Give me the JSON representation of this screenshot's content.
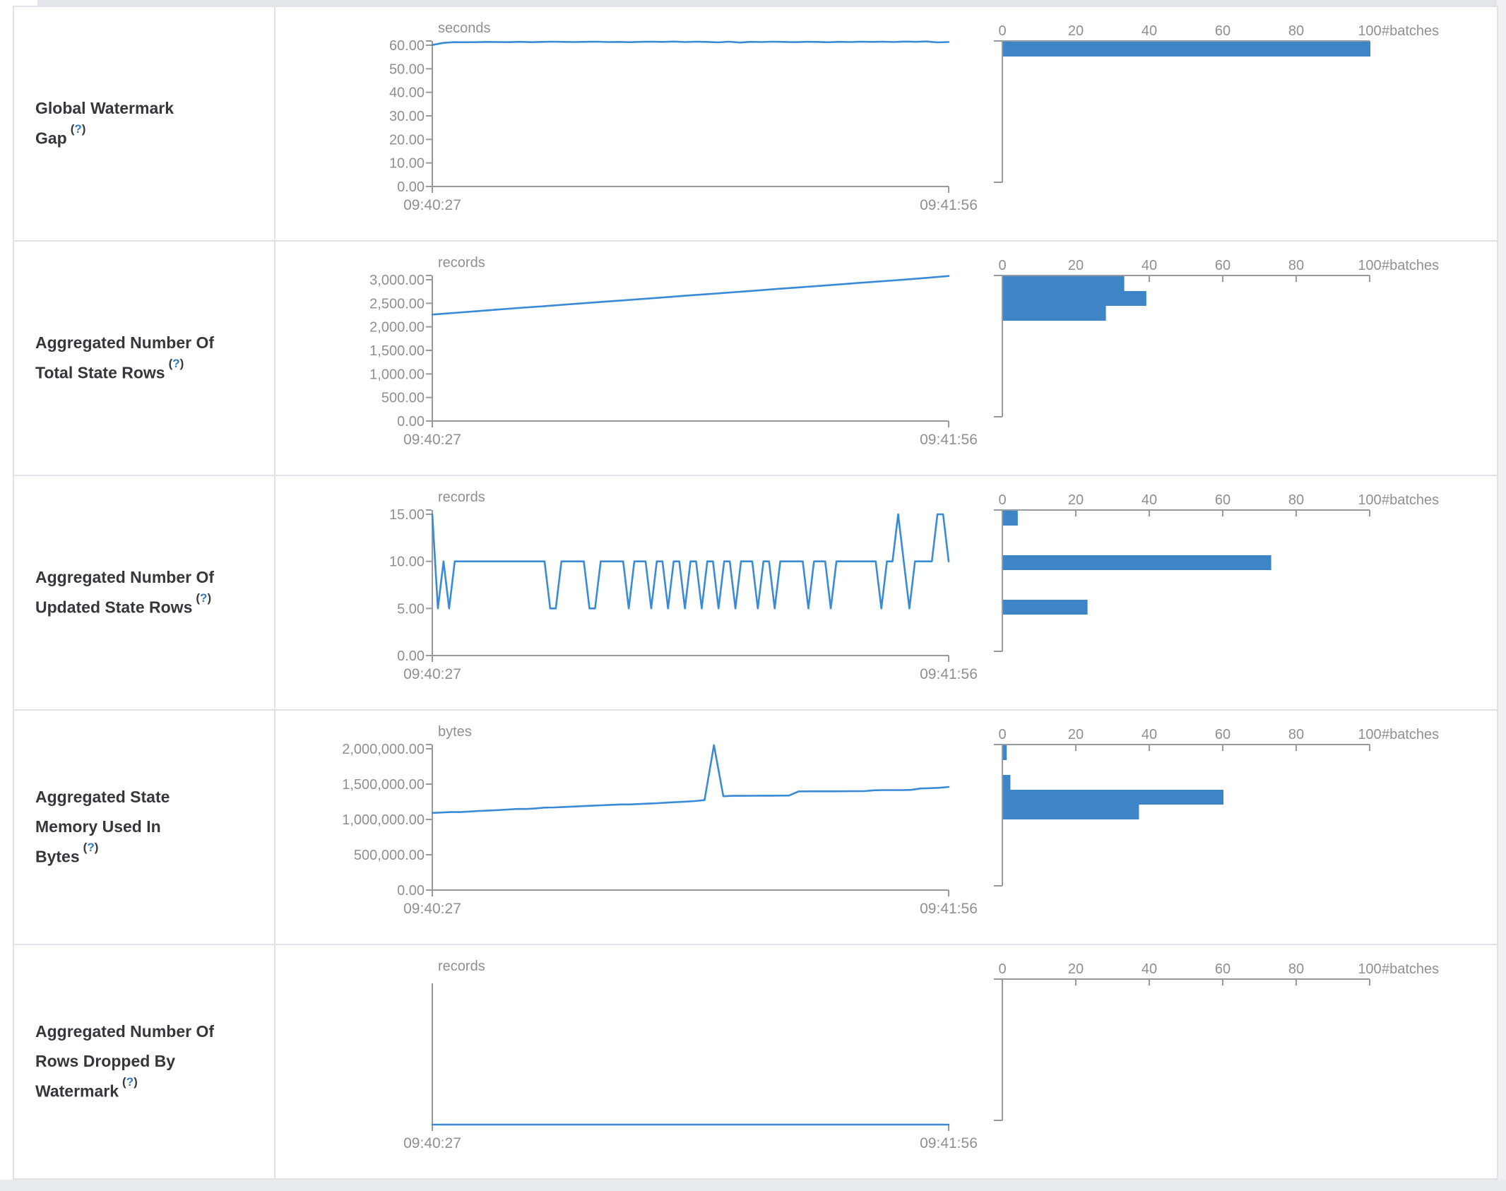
{
  "page": {
    "background": "#ffffff",
    "bottom_strip_color": "#e8ebee",
    "top_divider_color": "#e2e5e9",
    "table_border_color": "#dfe2e7"
  },
  "colors": {
    "bar": "#3d85c6",
    "line": "#3a8ad5",
    "axis": "#97999c",
    "tick_text": "#8d9093",
    "label_text": "#34373c",
    "help_blue": "#2e7cc0"
  },
  "help": {
    "prefix": "(",
    "mark": "?",
    "suffix": ")"
  },
  "time_axis": {
    "start": "09:40:27",
    "end": "09:41:56"
  },
  "histogram_axis": {
    "ticks": [
      "0",
      "20",
      "40",
      "60",
      "80",
      "100"
    ],
    "unit_label": "#batches",
    "max": 100
  },
  "rows": [
    {
      "label": "Global Watermark Gap",
      "timeline": {
        "type": "line",
        "unit": "seconds",
        "y_max": 60,
        "y_ticks": [
          "60.00",
          "50.00",
          "40.00",
          "30.00",
          "20.00",
          "10.00",
          "0.00"
        ],
        "values": [
          60.1,
          61.0,
          61.3,
          61.25,
          61.3,
          61.4,
          61.35,
          61.3,
          61.45,
          61.3,
          61.4,
          61.5,
          61.4,
          61.35,
          61.45,
          61.5,
          61.35,
          61.4,
          61.3,
          61.45,
          61.5,
          61.4,
          61.55,
          61.35,
          61.5,
          61.4,
          61.2,
          61.5,
          61.15,
          61.45,
          61.35,
          61.5,
          61.4,
          61.3,
          61.45,
          61.4,
          61.25,
          61.45,
          61.35,
          61.5,
          61.4,
          61.5,
          61.35,
          61.55,
          61.45,
          61.6,
          61.2,
          61.35
        ]
      },
      "histogram": {
        "type": "bar",
        "bars": [
          {
            "bucket": 0,
            "count": 100
          }
        ]
      }
    },
    {
      "label": "Aggregated Number Of Total State Rows",
      "timeline": {
        "type": "line",
        "unit": "records",
        "y_max": 3000,
        "y_ticks": [
          "3,000.00",
          "2,500.00",
          "2,000.00",
          "1,500.00",
          "1,000.00",
          "500.00",
          "0.00"
        ],
        "values": [
          2260,
          2295,
          2330,
          2365,
          2400,
          2432,
          2466,
          2500,
          2533,
          2566,
          2600,
          2634,
          2668,
          2701,
          2735,
          2769,
          2803,
          2836,
          2870,
          2904,
          2938,
          2971,
          3005,
          3040,
          3080
        ]
      },
      "histogram": {
        "type": "bar",
        "bars": [
          {
            "bucket": 0,
            "count": 33
          },
          {
            "bucket": 1,
            "count": 39
          },
          {
            "bucket": 2,
            "count": 28
          }
        ]
      }
    },
    {
      "label": "Aggregated Number Of Updated State Rows",
      "timeline": {
        "type": "line",
        "unit": "records",
        "y_max": 15,
        "y_ticks": [
          "15.00",
          "10.00",
          "5.00",
          "0.00"
        ],
        "values": [
          15,
          5,
          10,
          5,
          10,
          10,
          10,
          10,
          10,
          10,
          10,
          10,
          10,
          10,
          10,
          10,
          10,
          10,
          10,
          10,
          10,
          5,
          5,
          10,
          10,
          10,
          10,
          10,
          5,
          5,
          10,
          10,
          10,
          10,
          10,
          5,
          10,
          10,
          10,
          5,
          10,
          10,
          5,
          10,
          10,
          5,
          10,
          10,
          5,
          10,
          10,
          5,
          10,
          10,
          5,
          10,
          10,
          10,
          5,
          10,
          10,
          5,
          10,
          10,
          10,
          10,
          10,
          5,
          10,
          10,
          10,
          5,
          10,
          10,
          10,
          10,
          10,
          10,
          10,
          10,
          5,
          10,
          10,
          15,
          10,
          5,
          10,
          10,
          10,
          10,
          15,
          15,
          10
        ]
      },
      "histogram": {
        "type": "bar",
        "bars": [
          {
            "bucket": 0,
            "count": 4
          },
          {
            "bucket": 3,
            "count": 73
          },
          {
            "bucket": 6,
            "count": 23
          }
        ]
      }
    },
    {
      "label": "Aggregated State Memory Used In Bytes",
      "timeline": {
        "type": "line",
        "unit": "bytes",
        "y_max": 2000000,
        "y_ticks": [
          "2,000,000.00",
          "1,500,000.00",
          "1,000,000.00",
          "500,000.00",
          "0.00"
        ],
        "values": [
          1092000,
          1098000,
          1104000,
          1104000,
          1112000,
          1120000,
          1126000,
          1132000,
          1140000,
          1148000,
          1148000,
          1156000,
          1168000,
          1170000,
          1176000,
          1182000,
          1188000,
          1194000,
          1200000,
          1206000,
          1212000,
          1212000,
          1218000,
          1224000,
          1230000,
          1238000,
          1246000,
          1252000,
          1260000,
          1274000,
          2052000,
          1328000,
          1334000,
          1334000,
          1335000,
          1336000,
          1336000,
          1337000,
          1338000,
          1396000,
          1398000,
          1398000,
          1398000,
          1398000,
          1399000,
          1400000,
          1400000,
          1412000,
          1415000,
          1415000,
          1415000,
          1418000,
          1438000,
          1442000,
          1448000,
          1460000
        ]
      },
      "histogram": {
        "type": "bar",
        "bars": [
          {
            "bucket": 0,
            "count": 1
          },
          {
            "bucket": 2,
            "count": 2
          },
          {
            "bucket": 3,
            "count": 60
          },
          {
            "bucket": 4,
            "count": 37
          }
        ]
      }
    },
    {
      "label": "Aggregated Number Of Rows Dropped By Watermark",
      "timeline": {
        "type": "line",
        "unit": "records",
        "y_max": 1,
        "y_ticks": [],
        "values": [
          0,
          0
        ]
      },
      "histogram": {
        "type": "bar",
        "bars": []
      }
    }
  ]
}
